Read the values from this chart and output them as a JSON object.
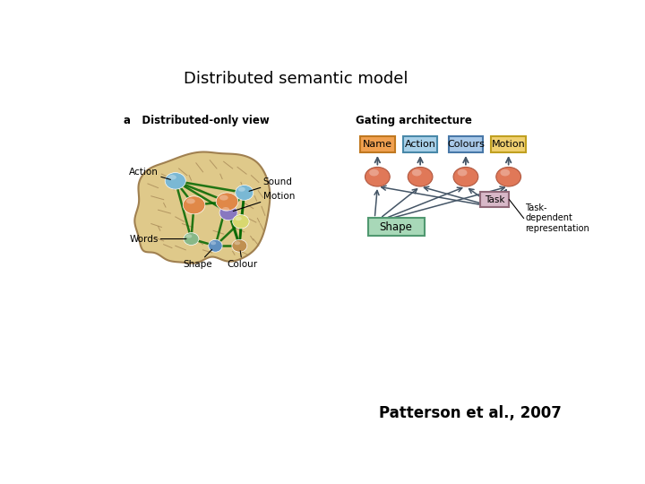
{
  "title": "Distributed semantic model",
  "citation": "Patterson et al., 2007",
  "title_fontsize": 13,
  "citation_fontsize": 12,
  "bg_color": "#ffffff",
  "brain_color": "#dfc98a",
  "brain_sulci_color": "#a08050",
  "label_a": "a   Distributed-only view",
  "label_gating": "Gating architecture",
  "node_colors": {
    "action": "#7ab8d4",
    "sound": "#7ab8d4",
    "motion": "#8878c0",
    "orange1": "#e08848",
    "orange2": "#e08848",
    "yellow": "#d8d870",
    "words": "#88b888",
    "shape": "#6090c0",
    "colour": "#c09050"
  },
  "box_labels": [
    "Name",
    "Action",
    "Colours",
    "Motion"
  ],
  "box_colors": [
    "#f0a050",
    "#a8d0e8",
    "#a8c8e8",
    "#f0d070"
  ],
  "box_edge_colors": [
    "#c07820",
    "#4888a8",
    "#4878a8",
    "#c0a020"
  ],
  "shape_box_color": "#a8d8b8",
  "shape_box_edge": "#509870",
  "task_box_color": "#d8b8c8",
  "task_box_edge": "#906878",
  "arrow_color": "#445566",
  "node_red": "#e07858",
  "green_line": "#006600"
}
